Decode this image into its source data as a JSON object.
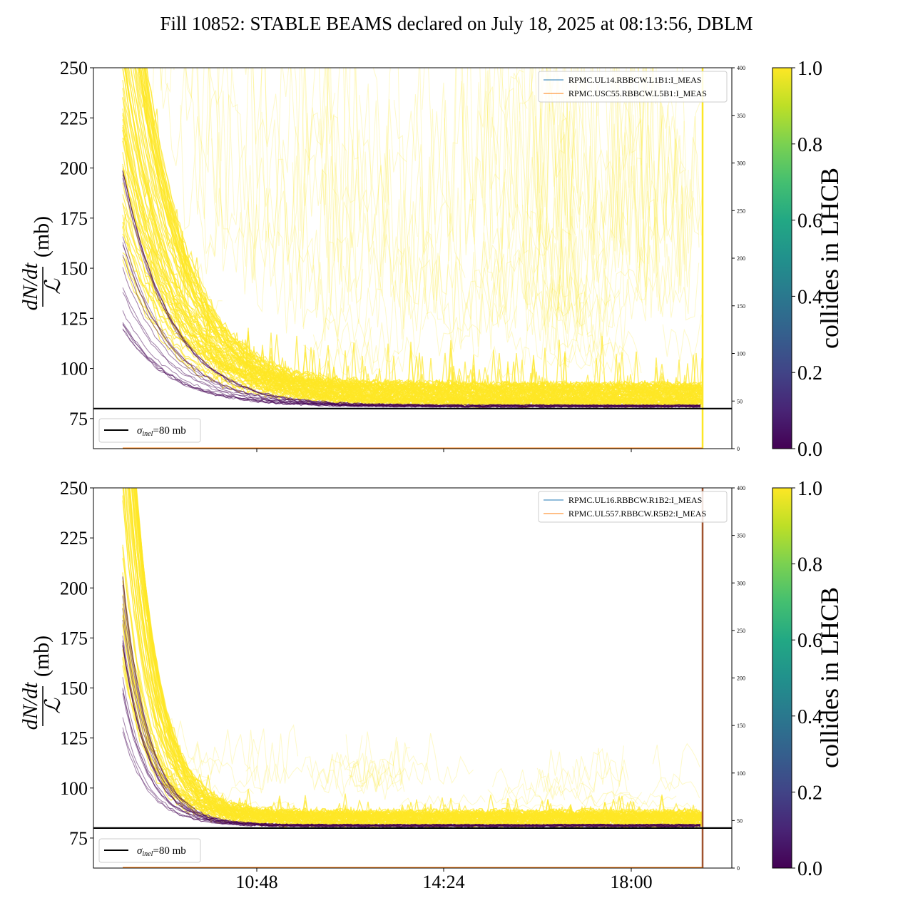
{
  "title": "Fill 10852: STABLE BEAMS declared on July 18, 2025 at 08:13:56, DBLM",
  "colors": {
    "yellow": "#fde725",
    "purple": "#440154",
    "sigma_line": "#000000",
    "series_blue": "#1f77b4",
    "series_orange": "#ff7f0e"
  },
  "colorbar": {
    "label": "collides in LHCB",
    "ticks": [
      "0.0",
      "0.2",
      "0.4",
      "0.6",
      "0.8",
      "1.0"
    ],
    "colormap": "viridis"
  },
  "ylabel": {
    "numerator": "dN/dt",
    "denominator": "ℒ",
    "unit": "(mb)"
  },
  "sigma_legend": {
    "symbol": "σ",
    "subscript": "inel",
    "text": "=80 mb"
  },
  "chart_data": [
    {
      "type": "line",
      "panel": "top",
      "x_ticks": [
        "10:48",
        "14:24",
        "18:00"
      ],
      "x_tick_labels_visible": false,
      "y_ticks": [
        75,
        100,
        125,
        150,
        175,
        200,
        225,
        250
      ],
      "ylim": [
        60,
        250
      ],
      "y2_ticks": [
        0,
        50,
        100,
        150,
        200,
        250,
        300,
        350,
        400
      ],
      "y2lim": [
        0,
        400
      ],
      "hline": 80,
      "series": [
        {
          "name": "RPMC.UL14.RBBCW.L1B1:I_MEAS",
          "color": "#1f77b4",
          "values": [
            0,
            0,
            0,
            0,
            0
          ]
        },
        {
          "name": "RPMC.USC55.RBBCW.L5B1:I_MEAS",
          "color": "#ff7f0e",
          "values": [
            0,
            0,
            0,
            0,
            0
          ]
        }
      ],
      "legend": "upper right"
    },
    {
      "type": "line",
      "panel": "bottom",
      "x_ticks": [
        "10:48",
        "14:24",
        "18:00"
      ],
      "y_ticks": [
        75,
        100,
        125,
        150,
        175,
        200,
        225,
        250
      ],
      "ylim": [
        60,
        250
      ],
      "y2_ticks": [
        0,
        50,
        100,
        150,
        200,
        250,
        300,
        350,
        400
      ],
      "y2lim": [
        0,
        400
      ],
      "hline": 80,
      "series": [
        {
          "name": "RPMC.UL16.RBBCW.R1B2:I_MEAS",
          "color": "#1f77b4",
          "values": [
            0,
            0,
            0,
            0,
            0
          ]
        },
        {
          "name": "RPMC.UL557.RBBCW.R5B2:I_MEAS",
          "color": "#ff7f0e",
          "values": [
            0,
            0,
            0,
            0,
            0
          ]
        }
      ],
      "legend": "upper right"
    }
  ]
}
